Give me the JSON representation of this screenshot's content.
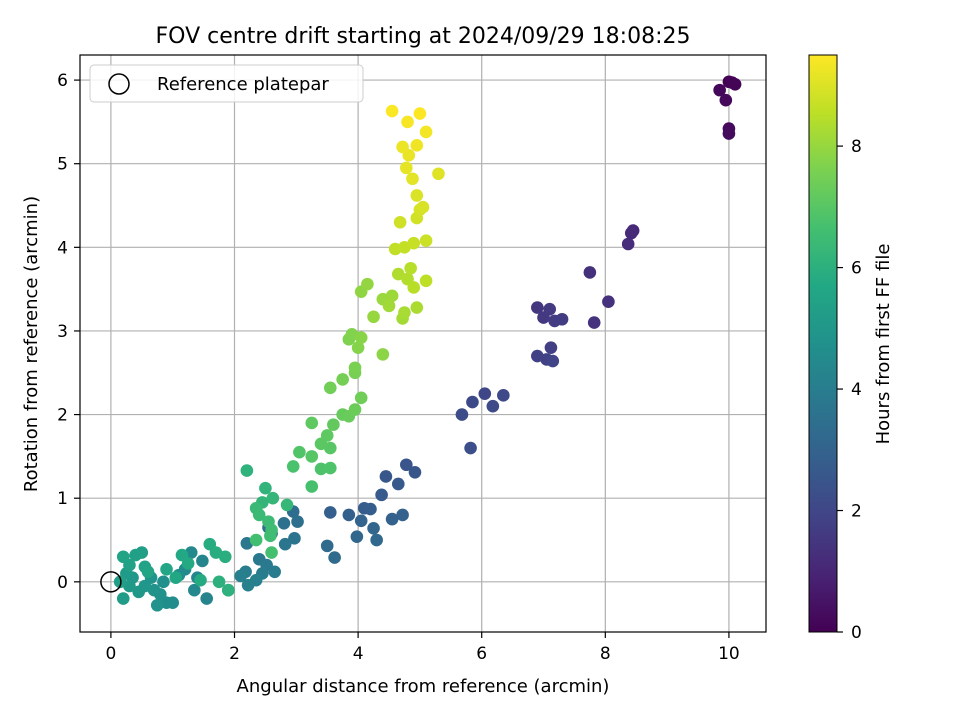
{
  "chart_data": {
    "type": "scatter",
    "title": "FOV centre drift starting at 2024/09/29 18:08:25",
    "xlabel": "Angular distance from reference (arcmin)",
    "ylabel": "Rotation from reference (arcmin)",
    "xlim": [
      -0.5,
      10.6
    ],
    "ylim": [
      -0.6,
      6.3
    ],
    "xticks": [
      "0",
      "2",
      "4",
      "6",
      "8",
      "10"
    ],
    "yticks": [
      "0",
      "1",
      "2",
      "3",
      "4",
      "5",
      "6"
    ],
    "grid": true,
    "legend": {
      "placement": "top-left",
      "entries": [
        "Reference platepar"
      ]
    },
    "reference_point": {
      "x": 0,
      "y": 0,
      "label": "Reference platepar"
    },
    "colorbar": {
      "label": "Hours from first FF file",
      "colormap": "viridis",
      "range": [
        0,
        9.5
      ],
      "ticks": [
        "0",
        "2",
        "4",
        "6",
        "8"
      ]
    },
    "points": [
      {
        "x": 10.0,
        "y": 5.98,
        "c": 0.0
      },
      {
        "x": 10.05,
        "y": 5.97,
        "c": 0.05
      },
      {
        "x": 10.1,
        "y": 5.95,
        "c": 0.1
      },
      {
        "x": 9.85,
        "y": 5.88,
        "c": 0.15
      },
      {
        "x": 9.95,
        "y": 5.76,
        "c": 0.2
      },
      {
        "x": 10.0,
        "y": 5.42,
        "c": 0.25
      },
      {
        "x": 10.0,
        "y": 5.36,
        "c": 0.3
      },
      {
        "x": 8.45,
        "y": 4.2,
        "c": 1.1
      },
      {
        "x": 8.42,
        "y": 4.17,
        "c": 1.15
      },
      {
        "x": 8.37,
        "y": 4.04,
        "c": 1.2
      },
      {
        "x": 7.75,
        "y": 3.7,
        "c": 1.3
      },
      {
        "x": 8.05,
        "y": 3.35,
        "c": 1.35
      },
      {
        "x": 7.82,
        "y": 3.1,
        "c": 1.4
      },
      {
        "x": 6.9,
        "y": 3.28,
        "c": 1.5
      },
      {
        "x": 7.0,
        "y": 3.16,
        "c": 1.55
      },
      {
        "x": 7.1,
        "y": 3.26,
        "c": 1.6
      },
      {
        "x": 7.18,
        "y": 3.12,
        "c": 1.65
      },
      {
        "x": 7.3,
        "y": 3.14,
        "c": 1.7
      },
      {
        "x": 7.12,
        "y": 2.8,
        "c": 1.75
      },
      {
        "x": 6.9,
        "y": 2.7,
        "c": 1.8
      },
      {
        "x": 7.05,
        "y": 2.66,
        "c": 1.85
      },
      {
        "x": 7.15,
        "y": 2.64,
        "c": 1.9
      },
      {
        "x": 6.05,
        "y": 2.25,
        "c": 2.0
      },
      {
        "x": 6.35,
        "y": 2.23,
        "c": 2.05
      },
      {
        "x": 5.85,
        "y": 2.15,
        "c": 2.1
      },
      {
        "x": 6.18,
        "y": 2.1,
        "c": 2.15
      },
      {
        "x": 5.68,
        "y": 2.0,
        "c": 2.2
      },
      {
        "x": 5.82,
        "y": 1.6,
        "c": 2.3
      },
      {
        "x": 4.78,
        "y": 1.4,
        "c": 2.5
      },
      {
        "x": 4.92,
        "y": 1.31,
        "c": 2.55
      },
      {
        "x": 4.45,
        "y": 1.26,
        "c": 2.6
      },
      {
        "x": 4.65,
        "y": 1.17,
        "c": 2.65
      },
      {
        "x": 4.38,
        "y": 1.04,
        "c": 2.7
      },
      {
        "x": 4.1,
        "y": 0.88,
        "c": 2.75
      },
      {
        "x": 4.2,
        "y": 0.87,
        "c": 2.8
      },
      {
        "x": 3.55,
        "y": 0.83,
        "c": 2.85
      },
      {
        "x": 3.85,
        "y": 0.8,
        "c": 2.9
      },
      {
        "x": 4.72,
        "y": 0.8,
        "c": 2.95
      },
      {
        "x": 4.55,
        "y": 0.75,
        "c": 3.0
      },
      {
        "x": 4.05,
        "y": 0.73,
        "c": 3.05
      },
      {
        "x": 4.25,
        "y": 0.64,
        "c": 3.1
      },
      {
        "x": 3.98,
        "y": 0.54,
        "c": 3.15
      },
      {
        "x": 4.3,
        "y": 0.5,
        "c": 3.2
      },
      {
        "x": 3.5,
        "y": 0.43,
        "c": 3.25
      },
      {
        "x": 3.62,
        "y": 0.29,
        "c": 3.3
      },
      {
        "x": 2.95,
        "y": 0.84,
        "c": 3.4
      },
      {
        "x": 3.02,
        "y": 0.72,
        "c": 3.45
      },
      {
        "x": 2.8,
        "y": 0.7,
        "c": 3.5
      },
      {
        "x": 2.55,
        "y": 0.65,
        "c": 3.55
      },
      {
        "x": 2.97,
        "y": 0.52,
        "c": 3.6
      },
      {
        "x": 2.6,
        "y": 0.58,
        "c": 3.65
      },
      {
        "x": 2.82,
        "y": 0.45,
        "c": 3.7
      },
      {
        "x": 2.2,
        "y": 0.46,
        "c": 3.75
      },
      {
        "x": 2.4,
        "y": 0.27,
        "c": 3.8
      },
      {
        "x": 2.52,
        "y": 0.2,
        "c": 3.85
      },
      {
        "x": 2.65,
        "y": 0.12,
        "c": 3.9
      },
      {
        "x": 2.45,
        "y": 0.1,
        "c": 3.95
      },
      {
        "x": 2.18,
        "y": 0.12,
        "c": 4.0
      },
      {
        "x": 2.1,
        "y": 0.07,
        "c": 4.05
      },
      {
        "x": 2.35,
        "y": 0.02,
        "c": 4.1
      },
      {
        "x": 2.22,
        "y": -0.04,
        "c": 4.15
      },
      {
        "x": 1.9,
        "y": -0.1,
        "c": 4.2
      },
      {
        "x": 1.55,
        "y": -0.2,
        "c": 4.25
      },
      {
        "x": 1.48,
        "y": 0.25,
        "c": 4.3
      },
      {
        "x": 1.4,
        "y": 0.05,
        "c": 4.35
      },
      {
        "x": 1.35,
        "y": -0.1,
        "c": 4.4
      },
      {
        "x": 1.3,
        "y": 0.35,
        "c": 4.45
      },
      {
        "x": 1.2,
        "y": 0.15,
        "c": 4.5
      },
      {
        "x": 1.1,
        "y": 0.08,
        "c": 4.55
      },
      {
        "x": 1.0,
        "y": -0.25,
        "c": 4.6
      },
      {
        "x": 0.9,
        "y": -0.25,
        "c": 4.65
      },
      {
        "x": 0.85,
        "y": 0.0,
        "c": 4.7
      },
      {
        "x": 0.8,
        "y": -0.15,
        "c": 4.75
      },
      {
        "x": 0.75,
        "y": -0.28,
        "c": 4.8
      },
      {
        "x": 0.7,
        "y": -0.1,
        "c": 4.85
      },
      {
        "x": 0.65,
        "y": 0.05,
        "c": 4.9
      },
      {
        "x": 0.55,
        "y": -0.05,
        "c": 4.95
      },
      {
        "x": 0.45,
        "y": -0.12,
        "c": 5.0
      },
      {
        "x": 0.35,
        "y": 0.05,
        "c": 5.05
      },
      {
        "x": 0.3,
        "y": -0.05,
        "c": 5.1
      },
      {
        "x": 0.25,
        "y": 0.1,
        "c": 5.15
      },
      {
        "x": 0.2,
        "y": -0.2,
        "c": 5.2
      },
      {
        "x": 0.15,
        "y": 0.0,
        "c": 5.25
      },
      {
        "x": 0.5,
        "y": 0.35,
        "c": 5.3
      },
      {
        "x": 0.4,
        "y": 0.32,
        "c": 5.35
      },
      {
        "x": 0.3,
        "y": 0.2,
        "c": 5.4
      },
      {
        "x": 0.55,
        "y": 0.18,
        "c": 5.45
      },
      {
        "x": 0.2,
        "y": 0.3,
        "c": 5.5
      },
      {
        "x": 0.6,
        "y": 0.12,
        "c": 5.55
      },
      {
        "x": 0.9,
        "y": 0.15,
        "c": 5.6
      },
      {
        "x": 1.05,
        "y": 0.05,
        "c": 5.65
      },
      {
        "x": 1.15,
        "y": 0.32,
        "c": 5.7
      },
      {
        "x": 1.25,
        "y": 0.22,
        "c": 5.75
      },
      {
        "x": 1.45,
        "y": 0.02,
        "c": 5.8
      },
      {
        "x": 1.6,
        "y": 0.45,
        "c": 5.85
      },
      {
        "x": 1.7,
        "y": 0.35,
        "c": 5.9
      },
      {
        "x": 1.85,
        "y": 0.3,
        "c": 5.95
      },
      {
        "x": 1.75,
        "y": 0.0,
        "c": 6.0
      },
      {
        "x": 1.9,
        "y": -0.1,
        "c": 6.05
      },
      {
        "x": 2.2,
        "y": 1.33,
        "c": 6.1
      },
      {
        "x": 2.5,
        "y": 1.12,
        "c": 6.15
      },
      {
        "x": 2.45,
        "y": 0.95,
        "c": 6.2
      },
      {
        "x": 2.62,
        "y": 1.0,
        "c": 6.25
      },
      {
        "x": 2.85,
        "y": 0.92,
        "c": 6.3
      },
      {
        "x": 2.35,
        "y": 0.88,
        "c": 6.35
      },
      {
        "x": 2.4,
        "y": 0.8,
        "c": 6.4
      },
      {
        "x": 2.55,
        "y": 0.72,
        "c": 6.45
      },
      {
        "x": 2.6,
        "y": 0.62,
        "c": 6.5
      },
      {
        "x": 2.58,
        "y": 0.55,
        "c": 6.55
      },
      {
        "x": 2.35,
        "y": 0.5,
        "c": 6.6
      },
      {
        "x": 2.6,
        "y": 0.35,
        "c": 6.65
      },
      {
        "x": 3.25,
        "y": 1.14,
        "c": 6.7
      },
      {
        "x": 2.95,
        "y": 1.38,
        "c": 6.75
      },
      {
        "x": 3.4,
        "y": 1.35,
        "c": 6.8
      },
      {
        "x": 3.55,
        "y": 1.36,
        "c": 6.85
      },
      {
        "x": 3.05,
        "y": 1.55,
        "c": 6.9
      },
      {
        "x": 3.25,
        "y": 1.5,
        "c": 6.95
      },
      {
        "x": 3.55,
        "y": 1.6,
        "c": 7.0
      },
      {
        "x": 3.4,
        "y": 1.65,
        "c": 7.05
      },
      {
        "x": 3.5,
        "y": 1.75,
        "c": 7.1
      },
      {
        "x": 3.25,
        "y": 1.9,
        "c": 7.15
      },
      {
        "x": 3.6,
        "y": 1.88,
        "c": 7.2
      },
      {
        "x": 3.75,
        "y": 2.0,
        "c": 7.25
      },
      {
        "x": 3.85,
        "y": 1.98,
        "c": 7.3
      },
      {
        "x": 3.95,
        "y": 2.06,
        "c": 7.35
      },
      {
        "x": 4.05,
        "y": 2.2,
        "c": 7.4
      },
      {
        "x": 3.55,
        "y": 2.32,
        "c": 7.45
      },
      {
        "x": 3.75,
        "y": 2.42,
        "c": 7.5
      },
      {
        "x": 3.95,
        "y": 2.5,
        "c": 7.55
      },
      {
        "x": 3.95,
        "y": 2.56,
        "c": 7.6
      },
      {
        "x": 3.85,
        "y": 2.9,
        "c": 7.65
      },
      {
        "x": 3.9,
        "y": 2.96,
        "c": 7.7
      },
      {
        "x": 4.0,
        "y": 2.8,
        "c": 7.75
      },
      {
        "x": 4.05,
        "y": 2.92,
        "c": 7.8
      },
      {
        "x": 4.4,
        "y": 2.72,
        "c": 7.85
      },
      {
        "x": 4.05,
        "y": 3.47,
        "c": 7.9
      },
      {
        "x": 4.15,
        "y": 3.56,
        "c": 7.95
      },
      {
        "x": 4.25,
        "y": 3.17,
        "c": 8.0
      },
      {
        "x": 4.4,
        "y": 3.38,
        "c": 8.05
      },
      {
        "x": 4.55,
        "y": 3.42,
        "c": 8.1
      },
      {
        "x": 4.5,
        "y": 3.3,
        "c": 8.15
      },
      {
        "x": 4.72,
        "y": 3.15,
        "c": 8.2
      },
      {
        "x": 4.75,
        "y": 3.22,
        "c": 8.25
      },
      {
        "x": 4.95,
        "y": 3.28,
        "c": 8.3
      },
      {
        "x": 4.65,
        "y": 3.68,
        "c": 8.35
      },
      {
        "x": 4.8,
        "y": 3.62,
        "c": 8.4
      },
      {
        "x": 4.85,
        "y": 3.75,
        "c": 8.45
      },
      {
        "x": 4.9,
        "y": 3.52,
        "c": 8.5
      },
      {
        "x": 5.1,
        "y": 3.6,
        "c": 8.55
      },
      {
        "x": 4.6,
        "y": 3.98,
        "c": 8.6
      },
      {
        "x": 4.75,
        "y": 4.0,
        "c": 8.65
      },
      {
        "x": 4.9,
        "y": 4.05,
        "c": 8.7
      },
      {
        "x": 5.1,
        "y": 4.08,
        "c": 8.75
      },
      {
        "x": 4.68,
        "y": 4.3,
        "c": 8.8
      },
      {
        "x": 4.95,
        "y": 4.35,
        "c": 8.85
      },
      {
        "x": 5.0,
        "y": 4.45,
        "c": 8.9
      },
      {
        "x": 5.05,
        "y": 4.48,
        "c": 8.95
      },
      {
        "x": 4.95,
        "y": 4.62,
        "c": 9.0
      },
      {
        "x": 5.3,
        "y": 4.88,
        "c": 9.05
      },
      {
        "x": 4.88,
        "y": 4.82,
        "c": 9.1
      },
      {
        "x": 4.78,
        "y": 4.95,
        "c": 9.15
      },
      {
        "x": 4.82,
        "y": 5.1,
        "c": 9.2
      },
      {
        "x": 4.72,
        "y": 5.2,
        "c": 9.25
      },
      {
        "x": 4.95,
        "y": 5.22,
        "c": 9.3
      },
      {
        "x": 5.1,
        "y": 5.38,
        "c": 9.35
      },
      {
        "x": 4.8,
        "y": 5.5,
        "c": 9.4
      },
      {
        "x": 4.55,
        "y": 5.63,
        "c": 9.45
      },
      {
        "x": 5.0,
        "y": 5.6,
        "c": 9.5
      }
    ]
  }
}
